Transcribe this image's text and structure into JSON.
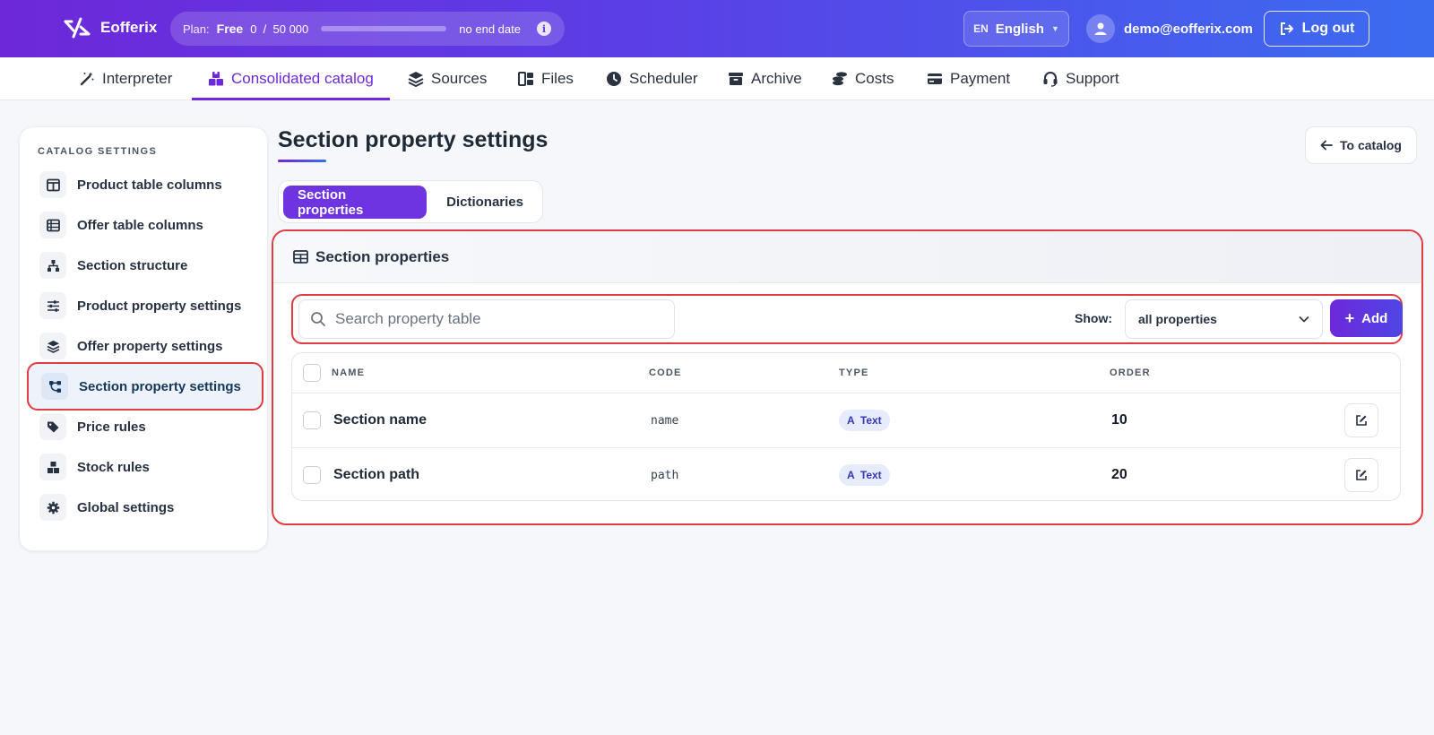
{
  "header": {
    "brand": "Eofferix",
    "plan": {
      "label": "Plan:",
      "name": "Free",
      "usage": "0  /  50 000",
      "usage_fraction": 0,
      "end": "no end date"
    },
    "language": {
      "code": "EN",
      "name": "English"
    },
    "user": "demo@eofferix.com",
    "logout": "Log out"
  },
  "nav": [
    {
      "label": "Interpreter",
      "icon": "magic-wand-icon"
    },
    {
      "label": "Consolidated catalog",
      "icon": "boxes-icon"
    },
    {
      "label": "Sources",
      "icon": "layers-icon"
    },
    {
      "label": "Files",
      "icon": "files-icon"
    },
    {
      "label": "Scheduler",
      "icon": "clock-icon"
    },
    {
      "label": "Archive",
      "icon": "archive-icon"
    },
    {
      "label": "Costs",
      "icon": "coins-icon"
    },
    {
      "label": "Payment",
      "icon": "credit-card-icon"
    },
    {
      "label": "Support",
      "icon": "headset-icon"
    }
  ],
  "sidebar": {
    "heading": "CATALOG SETTINGS",
    "items": [
      {
        "label": "Product table columns",
        "icon": "columns-icon"
      },
      {
        "label": "Offer table columns",
        "icon": "table-list-icon"
      },
      {
        "label": "Section structure",
        "icon": "sitemap-icon"
      },
      {
        "label": "Product property settings",
        "icon": "sliders-icon"
      },
      {
        "label": "Offer property settings",
        "icon": "layers-icon"
      },
      {
        "label": "Section property settings",
        "icon": "diagram-icon",
        "active": true
      },
      {
        "label": "Price rules",
        "icon": "tags-icon"
      },
      {
        "label": "Stock rules",
        "icon": "cubes-icon"
      },
      {
        "label": "Global settings",
        "icon": "gear-icon"
      }
    ]
  },
  "main": {
    "title": "Section property settings",
    "back_button": "To catalog",
    "tabs": [
      "Section properties",
      "Dictionaries"
    ],
    "card": {
      "title": "Section properties",
      "search_placeholder": "Search property table",
      "show_label": "Show:",
      "show_value": "all properties",
      "add_button": "Add",
      "columns": [
        "NAME",
        "CODE",
        "TYPE",
        "ORDER"
      ],
      "rows": [
        {
          "name": "Section name",
          "code": "name",
          "type": "A  Text",
          "order": "10"
        },
        {
          "name": "Section path",
          "code": "path",
          "type": "A  Text",
          "order": "20"
        }
      ]
    }
  },
  "colors": {
    "accent": "#6d28d9",
    "gradient_end": "#3b6cf0",
    "highlight": "#e23b40"
  }
}
